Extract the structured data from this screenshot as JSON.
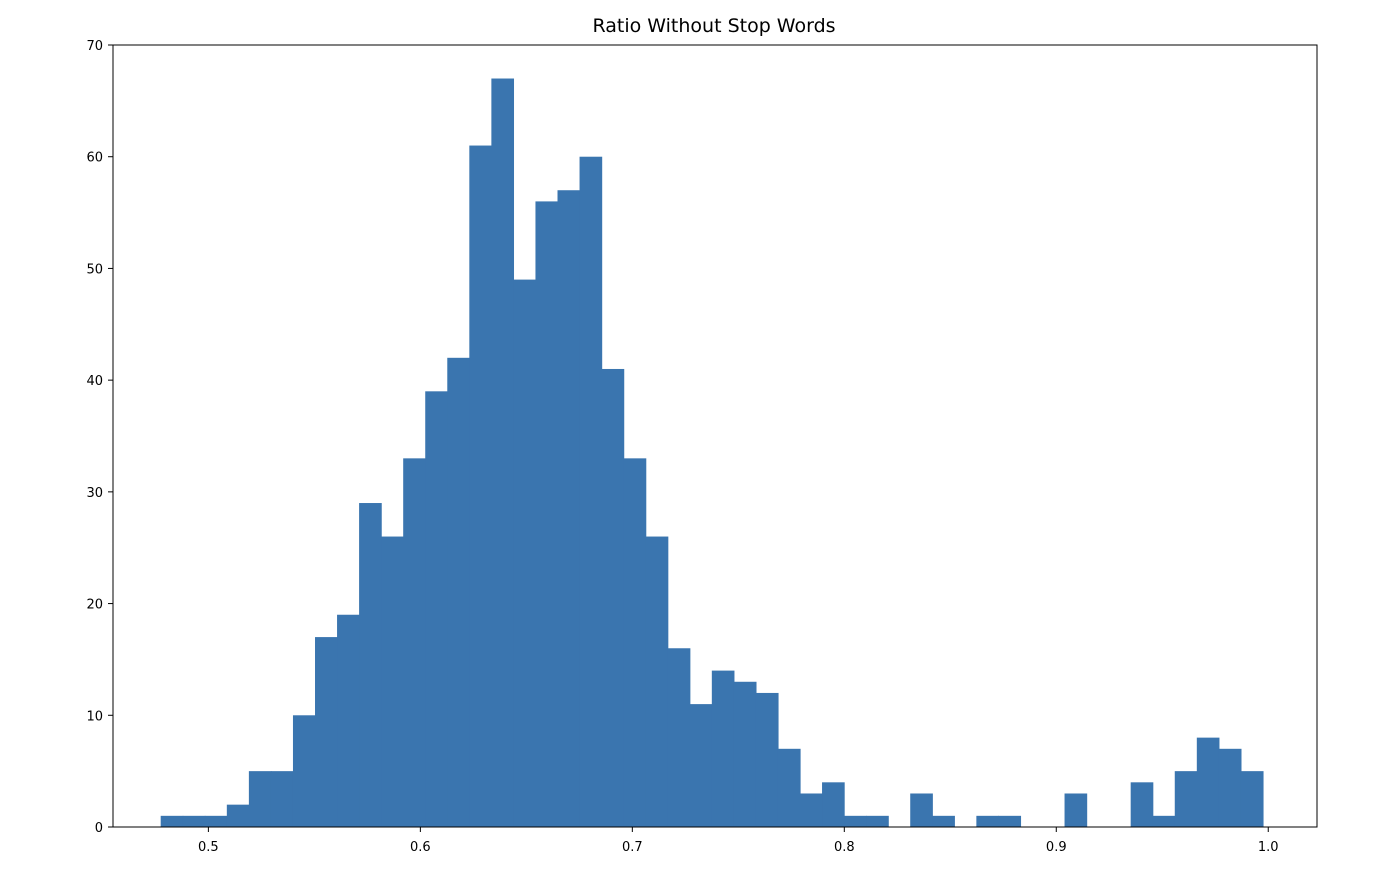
{
  "chart_data": {
    "type": "histogram",
    "title": "Ratio Without Stop Words",
    "xlabel": "",
    "ylabel": "",
    "bin_start": 0.4775,
    "bin_width": 0.0104,
    "counts": [
      1,
      1,
      1,
      2,
      5,
      5,
      10,
      17,
      19,
      29,
      26,
      33,
      39,
      42,
      61,
      67,
      49,
      56,
      57,
      60,
      41,
      33,
      26,
      16,
      11,
      14,
      13,
      12,
      7,
      3,
      4,
      1,
      1,
      0,
      3,
      1,
      0,
      1,
      1,
      0,
      0,
      3,
      0,
      0,
      4,
      1,
      5,
      8,
      7,
      5
    ],
    "xlim": [
      0.455,
      1.023
    ],
    "ylim": [
      0,
      70
    ],
    "xticks": [
      0.5,
      0.6,
      0.7,
      0.8,
      0.9,
      1.0
    ],
    "xtick_labels": [
      "0.5",
      "0.6",
      "0.7",
      "0.8",
      "0.9",
      "1.0"
    ],
    "yticks": [
      0,
      10,
      20,
      30,
      40,
      50,
      60,
      70
    ],
    "ytick_labels": [
      "0",
      "10",
      "20",
      "30",
      "40",
      "50",
      "60",
      "70"
    ],
    "bar_color": "#3a75af",
    "grid": false,
    "legend": "none"
  }
}
